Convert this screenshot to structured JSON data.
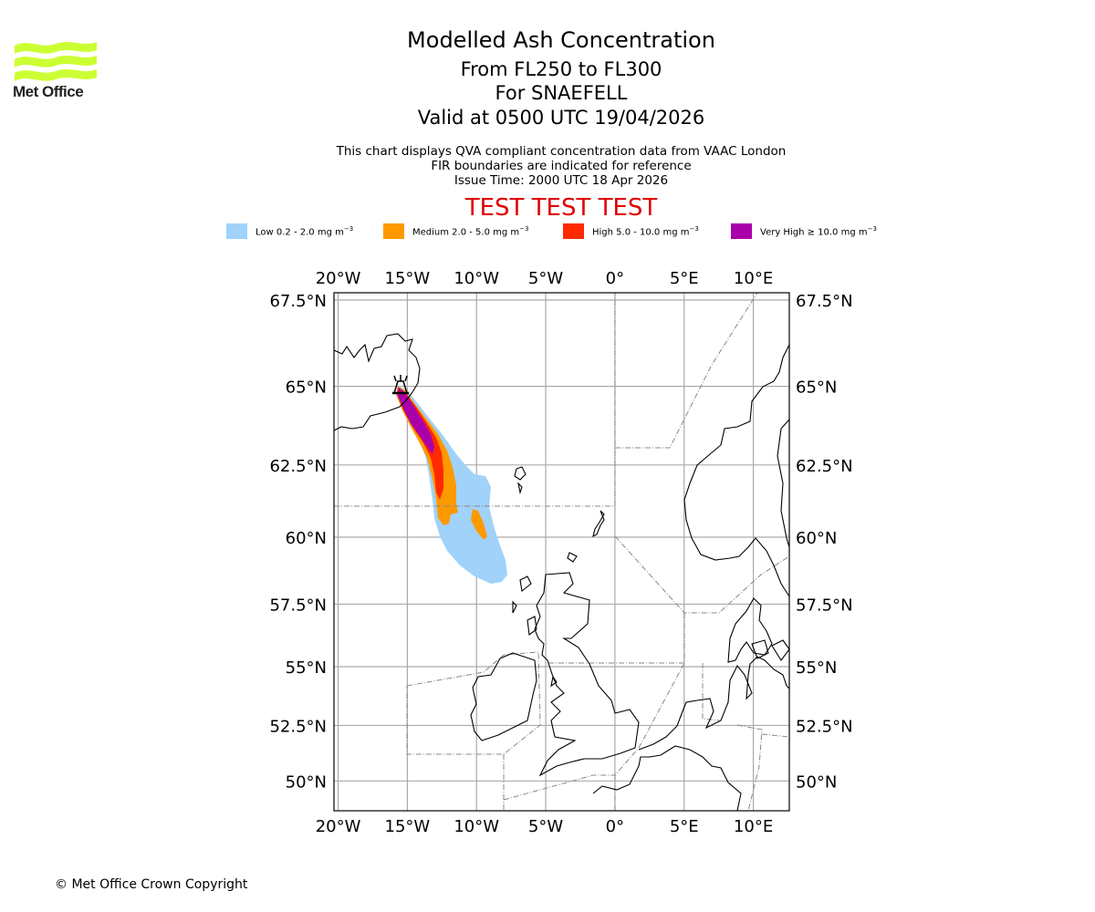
{
  "logo": {
    "name": "Met Office",
    "color": "#ccff33"
  },
  "header": {
    "title": "Modelled Ash Concentration",
    "flight_levels": "From FL250 to FL300",
    "volcano": "For SNAEFELL",
    "valid": "Valid at 0500 UTC 19/04/2026",
    "subtitle_line1": "This chart displays QVA compliant concentration data from VAAC London",
    "subtitle_line2": "FIR boundaries are indicated for reference",
    "issue_time": "Issue Time: 2000 UTC 18 Apr 2026",
    "test_banner": "TEST TEST TEST",
    "test_color": "#dd0000"
  },
  "legend": [
    {
      "label": "Low 0.2 - 2.0 mg m",
      "exp": "−3",
      "color": "#a0d2fa"
    },
    {
      "label": "Medium 2.0 - 5.0 mg m",
      "exp": "−3",
      "color": "#ff9900"
    },
    {
      "label": "High 5.0 - 10.0 mg m",
      "exp": "−3",
      "color": "#ff2a00"
    },
    {
      "label": "Very High ≥ 10.0 mg m",
      "exp": "−3",
      "color": "#aa00aa"
    }
  ],
  "map": {
    "lon_ticks": [
      {
        "value": -20,
        "label": "20°W"
      },
      {
        "value": -15,
        "label": "15°W"
      },
      {
        "value": -10,
        "label": "10°W"
      },
      {
        "value": -5,
        "label": "5°W"
      },
      {
        "value": 0,
        "label": "0°"
      },
      {
        "value": 5,
        "label": "5°E"
      },
      {
        "value": 10,
        "label": "10°E"
      }
    ],
    "lat_ticks": [
      {
        "value": 67.5,
        "label": "67.5°N"
      },
      {
        "value": 65,
        "label": "65°N"
      },
      {
        "value": 62.5,
        "label": "62.5°N"
      },
      {
        "value": 60,
        "label": "60°N"
      },
      {
        "value": 57.5,
        "label": "57.5°N"
      },
      {
        "value": 55,
        "label": "55°N"
      },
      {
        "value": 52.5,
        "label": "52.5°N"
      },
      {
        "value": 50,
        "label": "50°N"
      }
    ],
    "extent": {
      "lon_min": -20.3,
      "lon_max": 12.6,
      "lat_min": 48.6,
      "lat_max": 67.7
    },
    "volcano_location": {
      "name": "SNAEFELL",
      "lon": -15.6,
      "lat": 64.8
    }
  },
  "footer": {
    "copyright": "© Met Office Crown Copyright"
  }
}
